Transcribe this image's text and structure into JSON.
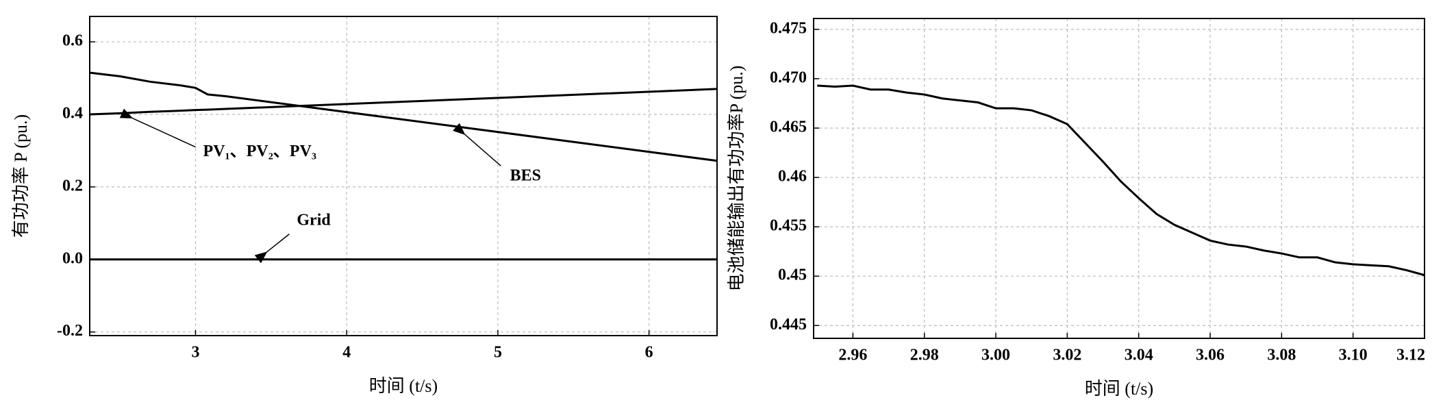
{
  "chart_data": [
    {
      "type": "line",
      "xlabel": "时间 (t/s)",
      "ylabel": "有功功率 P (pu.)",
      "x": [
        2.3,
        2.5,
        2.7,
        2.9,
        3.0,
        3.08,
        3.2,
        6.45
      ],
      "series": [
        {
          "name": "PV₁、PV₂、PV₃",
          "color": "#000000",
          "values": [
            0.4,
            0.403,
            0.407,
            0.41,
            0.412,
            0.413,
            0.415,
            0.47
          ]
        },
        {
          "name": "BES",
          "color": "#000000",
          "values": [
            0.515,
            0.505,
            0.49,
            0.48,
            0.473,
            0.455,
            0.45,
            0.272
          ]
        },
        {
          "name": "Grid",
          "color": "#000000",
          "values": [
            0,
            0,
            0,
            0,
            0,
            0,
            0,
            0
          ]
        }
      ],
      "xlim": [
        2.3,
        6.45
      ],
      "xticks": [
        3,
        4,
        5,
        6
      ],
      "ylim": [
        -0.21,
        0.67
      ],
      "yticks": [
        -0.2,
        {
          "value": 0,
          "label": "0.0"
        },
        0.2,
        0.4,
        0.6
      ],
      "grid": true
    },
    {
      "type": "line",
      "xlabel": "时间 (t/s)",
      "ylabel": "电池储能输出有功功率P (pu.)",
      "x": [
        2.95,
        2.955,
        2.96,
        2.965,
        2.97,
        2.975,
        2.98,
        2.985,
        2.99,
        2.995,
        3.0,
        3.005,
        3.01,
        3.015,
        3.02,
        3.025,
        3.03,
        3.035,
        3.04,
        3.045,
        3.05,
        3.055,
        3.06,
        3.065,
        3.07,
        3.075,
        3.08,
        3.085,
        3.09,
        3.095,
        3.1,
        3.105,
        3.11,
        3.115,
        3.12
      ],
      "series": [
        {
          "color": "#000000",
          "values": [
            0.4693,
            0.4692,
            0.4693,
            0.4689,
            0.4689,
            0.4686,
            0.4684,
            0.468,
            0.4678,
            0.4676,
            0.467,
            0.467,
            0.4668,
            0.4662,
            0.4654,
            0.4635,
            0.4616,
            0.4596,
            0.4579,
            0.4563,
            0.4552,
            0.4544,
            0.4536,
            0.4532,
            0.453,
            0.4526,
            0.4523,
            0.4519,
            0.4519,
            0.4514,
            0.4512,
            0.4511,
            0.451,
            0.4506,
            0.4501
          ]
        }
      ],
      "xlim": [
        2.949,
        3.12
      ],
      "xticks": [
        2.96,
        2.98,
        {
          "value": 3,
          "label": "3.00"
        },
        3.02,
        3.04,
        3.06,
        3.08,
        {
          "value": 3.1,
          "label": "3.10"
        },
        3.12
      ],
      "ylim": [
        0.4437,
        0.4761
      ],
      "yticks": [
        0.445,
        0.45,
        0.455,
        0.46,
        0.465,
        {
          "value": 0.47,
          "label": "0.470"
        },
        0.475
      ],
      "grid": true
    }
  ]
}
